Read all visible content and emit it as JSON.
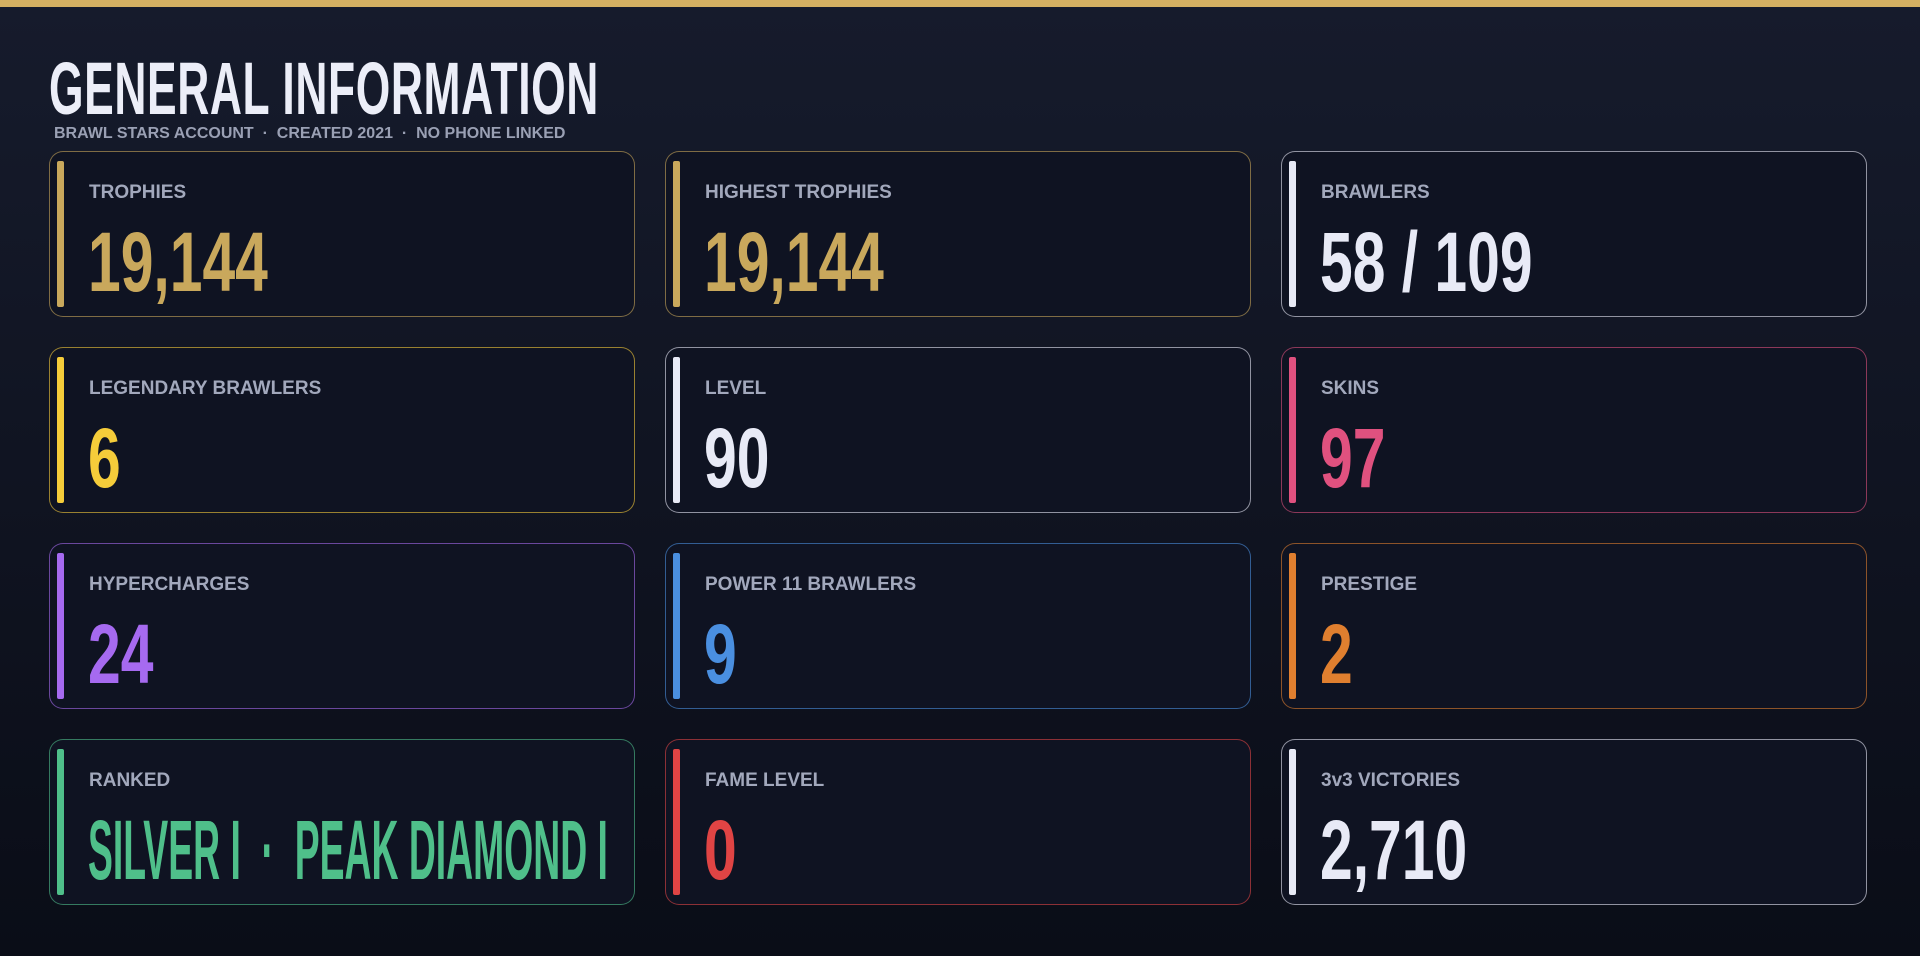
{
  "header": {
    "title": "GENERAL INFORMATION",
    "subtitle": "BRAWL STARS ACCOUNT  ·  CREATED 2021  ·  NO PHONE LINKED"
  },
  "cards": [
    {
      "label": "TROPHIES",
      "value": "19,144",
      "color": "#c9a85c"
    },
    {
      "label": "HIGHEST TROPHIES",
      "value": "19,144",
      "color": "#c9a85c"
    },
    {
      "label": "BRAWLERS",
      "value": "58 / 109",
      "color": "#e8eaf6"
    },
    {
      "label": "LEGENDARY BRAWLERS",
      "value": "6",
      "color": "#f5cc3a"
    },
    {
      "label": "LEVEL",
      "value": "90",
      "color": "#e8eaf6"
    },
    {
      "label": "SKINS",
      "value": "97",
      "color": "#e0517f"
    },
    {
      "label": "HYPERCHARGES",
      "value": "24",
      "color": "#a66af0"
    },
    {
      "label": "POWER 11 BRAWLERS",
      "value": "9",
      "color": "#4a8fe0"
    },
    {
      "label": "PRESTIGE",
      "value": "2",
      "color": "#e07f2f"
    },
    {
      "label": "RANKED",
      "value": "SILVER I  ·  PEAK DIAMOND I",
      "color": "#4fbf8a"
    },
    {
      "label": "FAME LEVEL",
      "value": "0",
      "color": "#e04444"
    },
    {
      "label": "3v3 VICTORIES",
      "value": "2,710",
      "color": "#e8eaf6"
    }
  ]
}
